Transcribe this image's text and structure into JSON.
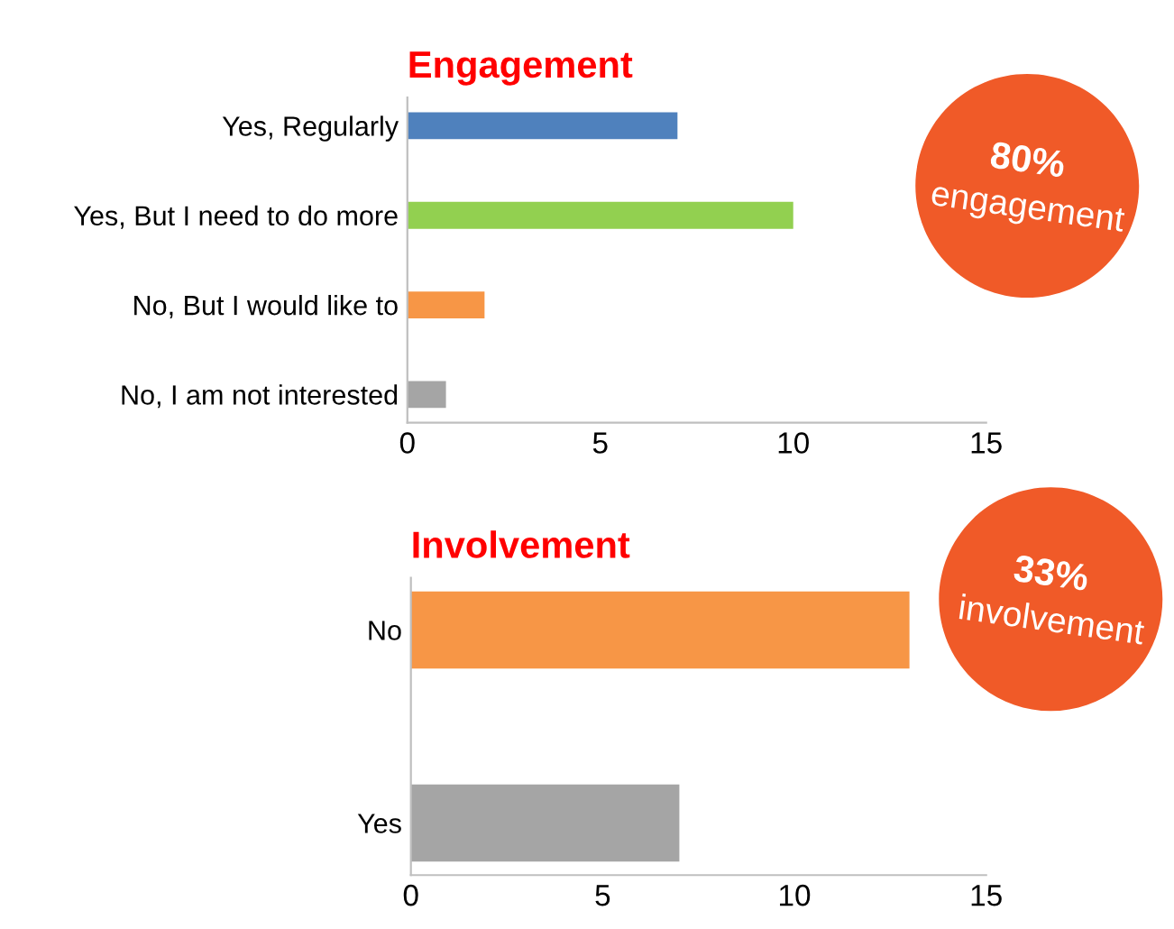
{
  "chart_data": [
    {
      "type": "bar",
      "orientation": "horizontal",
      "title": "Engagement",
      "categories": [
        "Yes, Regularly",
        "Yes, But I need to do more",
        "No, But I would like to",
        "No, I am not interested"
      ],
      "values": [
        7,
        10,
        2,
        1
      ],
      "colors": [
        "#4f81bd",
        "#92d050",
        "#f79646",
        "#a5a5a5"
      ],
      "xlim": [
        0,
        15
      ],
      "xticks": [
        0,
        5,
        10,
        15
      ],
      "grid": false,
      "annotations": [
        "80%",
        "engagement"
      ]
    },
    {
      "type": "bar",
      "orientation": "horizontal",
      "title": "Involvement",
      "categories": [
        "No",
        "Yes"
      ],
      "values": [
        13,
        7
      ],
      "colors": [
        "#f79646",
        "#a5a5a5"
      ],
      "xlim": [
        0,
        15
      ],
      "xticks": [
        0,
        5,
        10,
        15
      ],
      "grid": false,
      "annotations": [
        "33%",
        "involvement"
      ]
    }
  ]
}
